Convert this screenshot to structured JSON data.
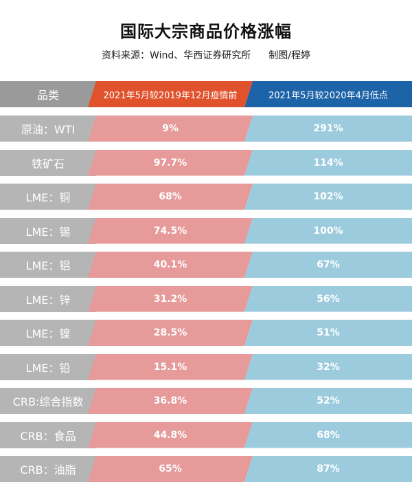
{
  "title": "国际大宗商品价格涨幅",
  "source": "资料来源：Wind、华西证券研究所",
  "author": "制图/程婷",
  "colors": {
    "header_category": "#9a9a9a",
    "header_col1": "#e0522c",
    "header_col2": "#1d63a8",
    "category_bg": "#b5b5b5",
    "col1_bg": "#e69a9a",
    "col2_bg": "#9ccbde"
  },
  "chart_data": {
    "type": "table",
    "columns": [
      "品类",
      "2021年5月较2019年12月疫情前",
      "2021年5月较2020年4月低点"
    ],
    "rows": [
      {
        "category": "原油：WTI",
        "pre_pandemic": "9%",
        "from_low": "291%"
      },
      {
        "category": "铁矿石",
        "pre_pandemic": "97.7%",
        "from_low": "114%"
      },
      {
        "category": "LME：铜",
        "pre_pandemic": "68%",
        "from_low": "102%"
      },
      {
        "category": "LME：锡",
        "pre_pandemic": "74.5%",
        "from_low": "100%"
      },
      {
        "category": "LME：铝",
        "pre_pandemic": "40.1%",
        "from_low": "67%"
      },
      {
        "category": "LME：锌",
        "pre_pandemic": "31.2%",
        "from_low": "56%"
      },
      {
        "category": "LME：镍",
        "pre_pandemic": "28.5%",
        "from_low": "51%"
      },
      {
        "category": "LME：铅",
        "pre_pandemic": "15.1%",
        "from_low": "32%"
      },
      {
        "category": "CRB:综合指数",
        "pre_pandemic": "36.8%",
        "from_low": "52%"
      },
      {
        "category": "CRB：食品",
        "pre_pandemic": "44.8%",
        "from_low": "68%"
      },
      {
        "category": "CRB：油脂",
        "pre_pandemic": "65%",
        "from_low": "87%"
      }
    ]
  }
}
